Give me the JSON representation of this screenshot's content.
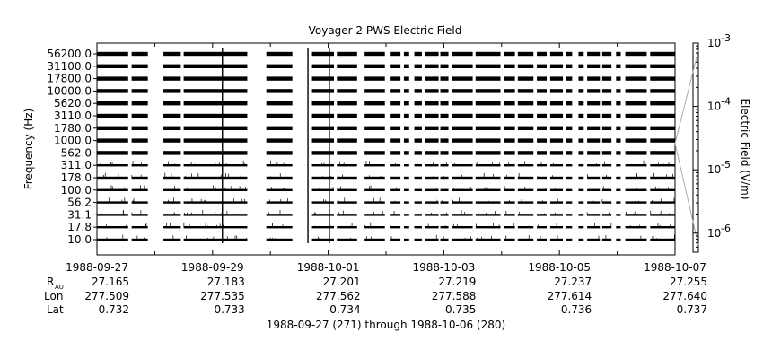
{
  "chart_data": {
    "type": "line",
    "title": "Voyager 2 PWS Electric Field",
    "ylabel": "Frequency (Hz)",
    "right_ylabel": "Electric Field (V/m)",
    "xlabel": "1988-09-27 (271) through 1988-10-06 (280)",
    "channels_hz": [
      "56200.0",
      "31100.0",
      "17800.0",
      "10000.0",
      "5620.0",
      "3110.0",
      "1780.0",
      "1000.0",
      "562.0",
      "311.0",
      "178.0",
      "100.0",
      "56.2",
      "31.1",
      "17.8",
      "10.0"
    ],
    "x_ticks": [
      "1988-09-27",
      "1988-09-29",
      "1988-10-01",
      "1988-10-03",
      "1988-10-05",
      "1988-10-07"
    ],
    "x_range_days": [
      0,
      10
    ],
    "ephemeris": {
      "labels": {
        "r_main": "R",
        "r_sub": "AU",
        "lon": "Lon",
        "lat": "Lat"
      },
      "rows": [
        [
          "27.165",
          "277.509",
          "0.732"
        ],
        [
          "27.183",
          "277.535",
          "0.733"
        ],
        [
          "27.201",
          "277.562",
          "0.734"
        ],
        [
          "27.219",
          "277.588",
          "0.735"
        ],
        [
          "27.237",
          "277.614",
          "0.736"
        ],
        [
          "27.255",
          "277.640",
          "0.737"
        ]
      ]
    },
    "colorbar": {
      "scale": "log",
      "range": [
        5e-07,
        0.001
      ],
      "tick_labels": [
        {
          "value": 0.001,
          "base": "10",
          "exp": "-3"
        },
        {
          "value": 0.0001,
          "base": "10",
          "exp": "-4"
        },
        {
          "value": 1e-05,
          "base": "10",
          "exp": "-5"
        },
        {
          "value": 1e-06,
          "base": "10",
          "exp": "-6"
        }
      ]
    },
    "data_coverage_days": [
      [
        0,
        0.54
      ],
      [
        0.6,
        0.88
      ],
      [
        1.15,
        1.45
      ],
      [
        1.5,
        2.6
      ],
      [
        2.93,
        3.38
      ],
      [
        3.72,
        4.1
      ],
      [
        4.15,
        4.5
      ],
      [
        4.63,
        4.98
      ],
      [
        5.08,
        5.25
      ],
      [
        5.31,
        5.4
      ],
      [
        5.49,
        5.62
      ],
      [
        5.68,
        5.91
      ],
      [
        5.94,
        6.08
      ],
      [
        6.14,
        6.5
      ],
      [
        6.55,
        6.98
      ],
      [
        7.04,
        7.23
      ],
      [
        7.28,
        7.55
      ],
      [
        7.61,
        7.78
      ],
      [
        7.84,
        8.06
      ],
      [
        8.12,
        8.22
      ],
      [
        8.33,
        8.42
      ],
      [
        8.48,
        8.7
      ],
      [
        8.74,
        8.9
      ],
      [
        8.98,
        9.06
      ],
      [
        9.14,
        9.51
      ],
      [
        9.57,
        10.0
      ]
    ],
    "events_days": [
      2.17,
      3.65,
      4.02
    ],
    "grid": false
  }
}
